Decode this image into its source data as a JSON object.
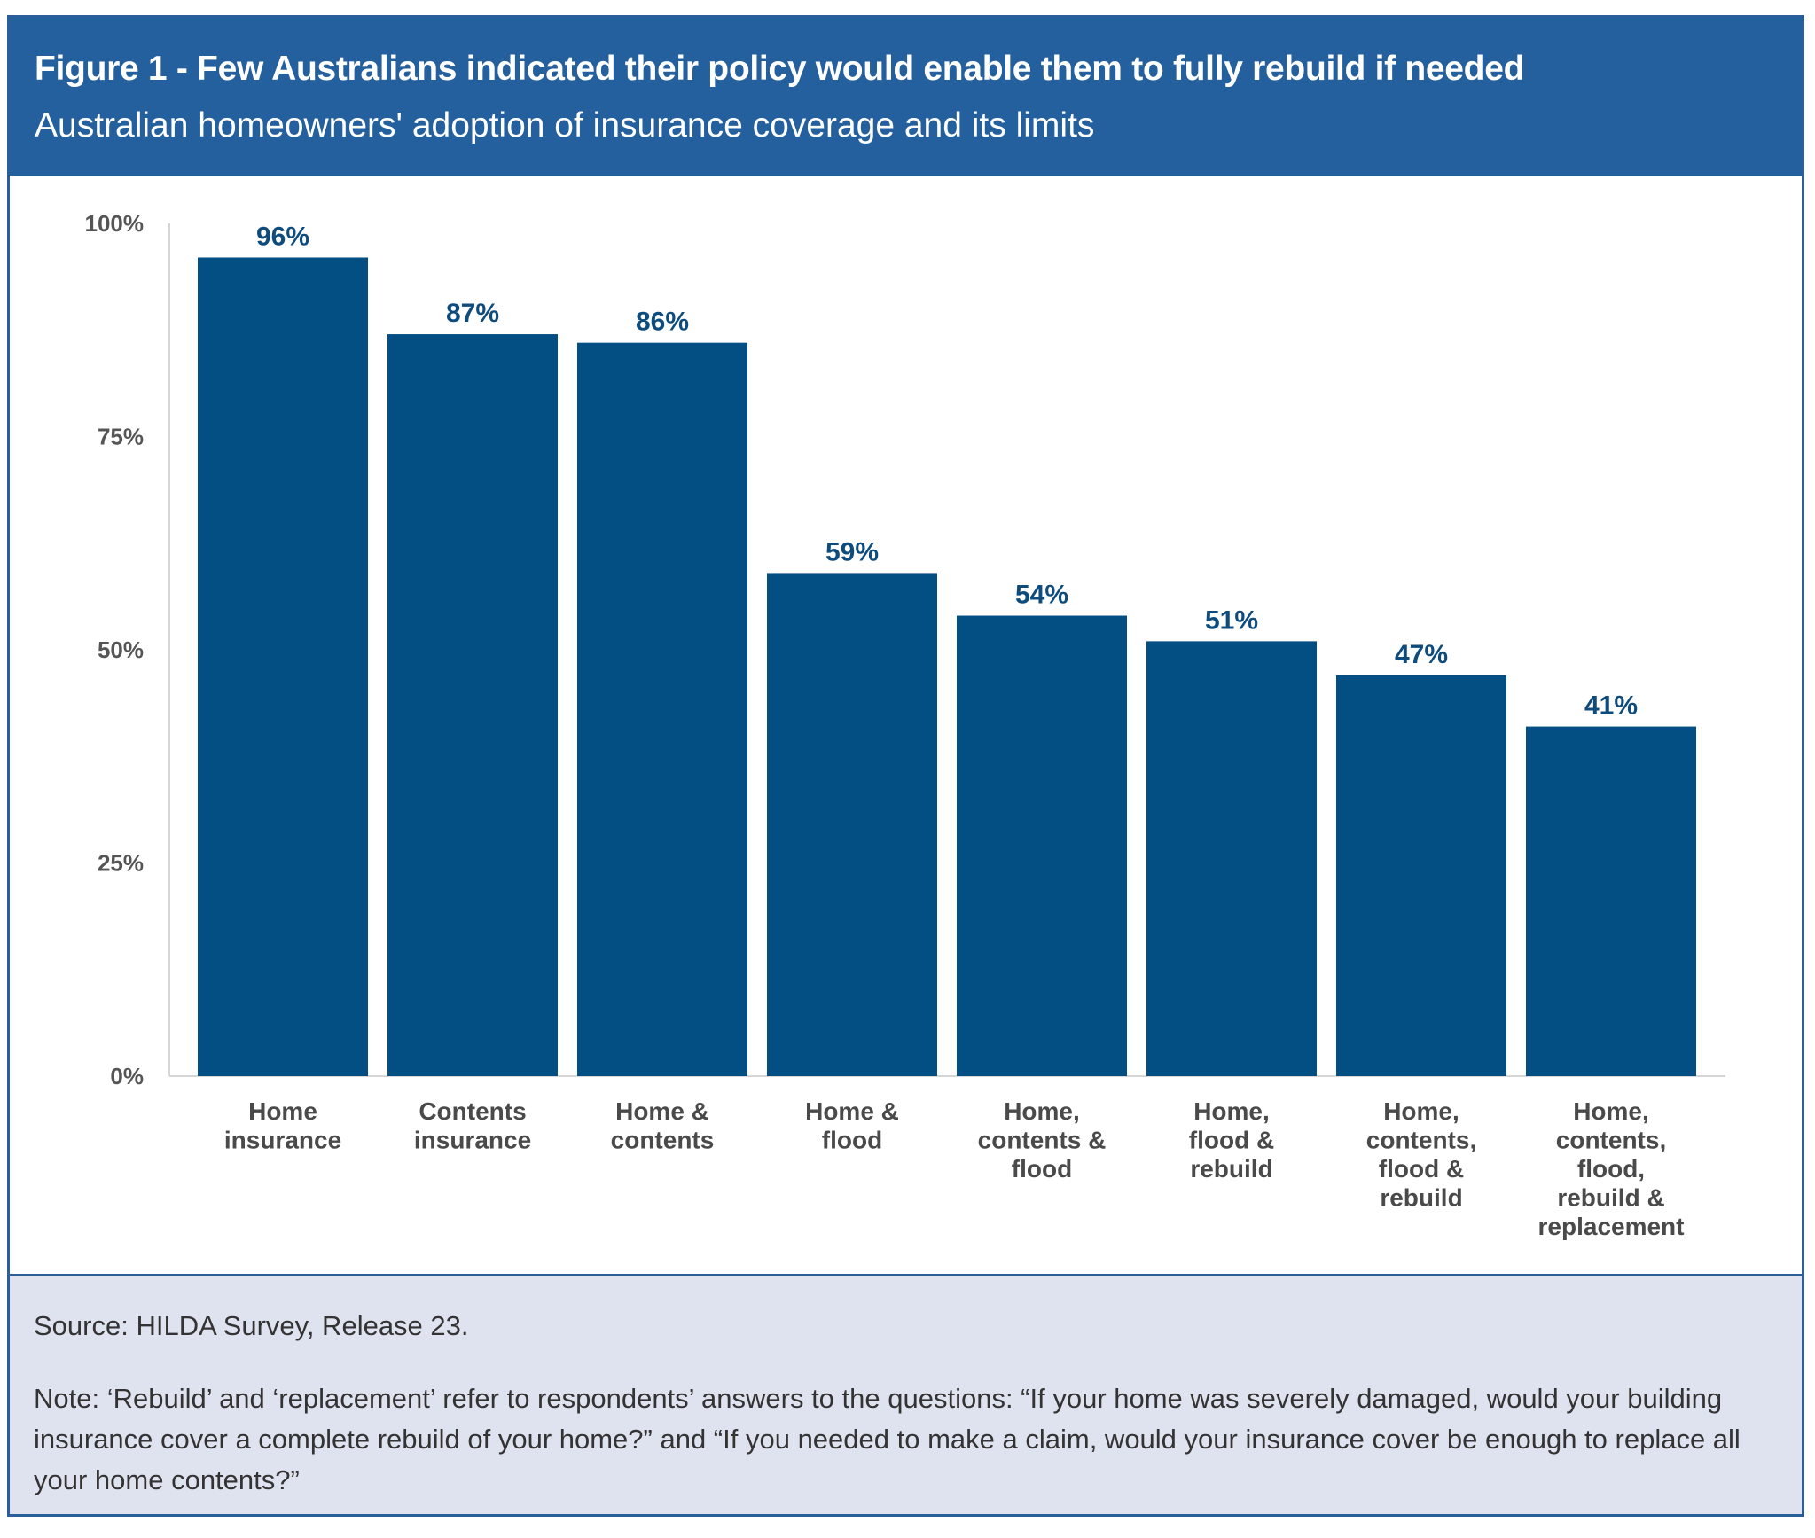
{
  "header": {
    "title": "Figure 1 - Few Australians indicated their policy would enable them to fully rebuild if needed",
    "subtitle": "Australian homeowners' adoption of insurance coverage and its limits"
  },
  "footer": {
    "source": "Source: HILDA Survey, Release 23.",
    "note": "Note: ‘Rebuild’ and ‘replacement’ refer to respondents’ answers to the questions: “If your home was severely damaged, would your building insurance cover a complete rebuild of your home?” and “If you needed to make a claim, would your insurance cover be enough to replace all your home contents?”"
  },
  "colors": {
    "header": "#245f9e",
    "bar": "#034e82",
    "data_label": "#0f4c7e",
    "footer_bg": "#dfe3ef"
  },
  "chart_data": {
    "type": "bar",
    "title": "Figure 1 - Few Australians indicated their policy would enable them to fully rebuild if needed",
    "subtitle": "Australian homeowners' adoption of insurance coverage and its limits",
    "xlabel": "",
    "ylabel": "",
    "ylim": [
      0,
      100
    ],
    "yticks": [
      0,
      25,
      50,
      75,
      100
    ],
    "ytick_labels": [
      "0%",
      "25%",
      "50%",
      "75%",
      "100%"
    ],
    "grid": false,
    "legend": "none",
    "categories": [
      [
        "Home",
        "insurance"
      ],
      [
        "Contents",
        "insurance"
      ],
      [
        "Home &",
        "contents"
      ],
      [
        "Home &",
        "flood"
      ],
      [
        "Home,",
        "contents &",
        "flood"
      ],
      [
        "Home,",
        "flood &",
        "rebuild"
      ],
      [
        "Home,",
        "contents,",
        "flood &",
        "rebuild"
      ],
      [
        "Home,",
        "contents,",
        "flood,",
        "rebuild &",
        "replacement"
      ]
    ],
    "values": [
      96,
      87,
      86,
      59,
      54,
      51,
      47,
      41
    ],
    "data_labels": [
      "96%",
      "87%",
      "86%",
      "59%",
      "54%",
      "51%",
      "47%",
      "41%"
    ]
  }
}
